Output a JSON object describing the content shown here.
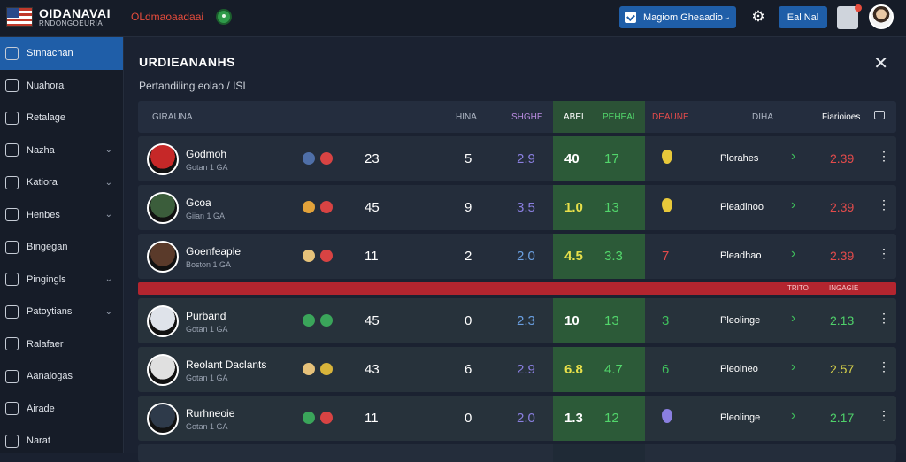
{
  "header": {
    "brand": "OIDANAVAI",
    "brand_sub": "RNDONGOEURIA",
    "red_tag": "OLdmaoaadaai",
    "select_label": "Magiom Gheaadio",
    "nl_label": "Eal Nal"
  },
  "sidebar": {
    "items": [
      {
        "label": "Stnnachan",
        "chevron": false,
        "active": true
      },
      {
        "label": "Nuahora",
        "chevron": false
      },
      {
        "label": "Retalage",
        "chevron": false
      },
      {
        "label": "Nazha",
        "chevron": true
      },
      {
        "label": "Katiora",
        "chevron": true
      },
      {
        "label": "Henbes",
        "chevron": true
      },
      {
        "label": "Bingegan",
        "chevron": false
      },
      {
        "label": "Pingingls",
        "chevron": true
      },
      {
        "label": "Patoytians",
        "chevron": true
      },
      {
        "label": "Ralafaer",
        "chevron": false
      },
      {
        "label": "Aanalogas",
        "chevron": false
      },
      {
        "label": "Airade",
        "chevron": false
      },
      {
        "label": "Narat",
        "chevron": false
      }
    ]
  },
  "panel": {
    "title": "URDIEANANHS",
    "subtitle": "Pertandiling eolao / ISI",
    "columns": {
      "name": "GIRAUNA",
      "c1": "HINA",
      "c2": "SHGHE",
      "c3": "ABEL",
      "c4": "PEHEAL",
      "c5": "DEAUNE",
      "c6": "DIHA",
      "c7": "Fiarioioes"
    },
    "divider": {
      "left": "TRITO",
      "right": "INGAGIE"
    }
  },
  "rows": [
    {
      "name": "Godmoh",
      "sub": "Gotan 1 GA",
      "c1": "23",
      "c2": "5",
      "c3": "2.9",
      "c4": "40",
      "c5": "17",
      "status": "Plorahes",
      "value": "2.39",
      "badges": [
        "#4f6fa8",
        "#d84343"
      ],
      "value_color": "#e34b4b"
    },
    {
      "name": "Gcoa",
      "sub": "Giian 1 GA",
      "c1": "45",
      "c2": "9",
      "c3": "3.5",
      "c4": "1.0",
      "c5": "13",
      "status": "Pleadinoo",
      "value": "2.39",
      "badges": [
        "#e2a23a",
        "#d84343"
      ],
      "value_color": "#e34b4b"
    },
    {
      "name": "Goenfeaple",
      "sub": "Boston 1 GA",
      "c1": "11",
      "c2": "2",
      "c3": "2.0",
      "c4": "4.5",
      "c5": "3.3",
      "c6": "7",
      "status": "Pleadhao",
      "value": "2.39",
      "badges": [
        "#e6c27a",
        "#d84343"
      ],
      "value_color": "#e34b4b"
    },
    {
      "name": "Purband",
      "sub": "Gotan 1 GA",
      "c1": "45",
      "c2": "0",
      "c3": "2.3",
      "c4": "10",
      "c5": "13",
      "c6": "3",
      "status": "Pleolinge",
      "value": "2.13",
      "badges": [
        "#3aa55a",
        "#3aa55a"
      ],
      "value_color": "#4fd16a"
    },
    {
      "name": "Reolant Daclants",
      "sub": "Gotan 1 GA",
      "c1": "43",
      "c2": "6",
      "c3": "2.9",
      "c4": "6.8",
      "c5": "4.7",
      "c6": "6",
      "status": "Pleoineo",
      "value": "2.57",
      "badges": [
        "#e6c27a",
        "#d8b43a"
      ],
      "value_color": "#d8d34a"
    },
    {
      "name": "Rurhneoie",
      "sub": "Gotan 1 GA",
      "c1": "11",
      "c2": "0",
      "c3": "2.0",
      "c4": "1.3",
      "c5": "12",
      "status": "Pleolinge",
      "value": "2.17",
      "badges": [
        "#3aa55a",
        "#d84343"
      ],
      "value_color": "#4fd16a"
    }
  ]
}
